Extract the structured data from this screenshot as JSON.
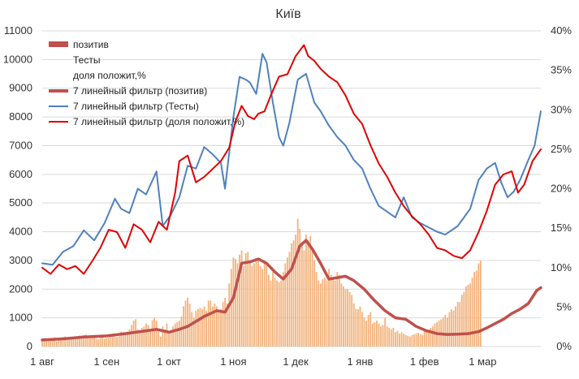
{
  "chart_data": {
    "type": "bar+line",
    "title": "Київ",
    "colors": {
      "bars": "#f2b27a",
      "pos_smooth": "#c0504d",
      "tests_smooth": "#4f81bd",
      "share_smooth": "#e00000",
      "legend_bar": "#c0504d",
      "grid": "#d9d9d9"
    },
    "y_left": {
      "min": 0,
      "max": 11000,
      "ticks": [
        "0",
        "1000",
        "2000",
        "3000",
        "4000",
        "5000",
        "6000",
        "7000",
        "8000",
        "9000",
        "10000",
        "11000"
      ]
    },
    "y_right": {
      "min": 0,
      "max": 40,
      "ticks": [
        "0%",
        "5%",
        "10%",
        "15%",
        "20%",
        "25%",
        "30%",
        "35%",
        "40%"
      ]
    },
    "x_ticks": [
      {
        "label": "1 авг",
        "day": 0
      },
      {
        "label": "1 сен",
        "day": 31
      },
      {
        "label": "1 окт",
        "day": 61
      },
      {
        "label": "1 ноя",
        "day": 92
      },
      {
        "label": "1 дек",
        "day": 122
      },
      {
        "label": "1 янв",
        "day": 153
      },
      {
        "label": "1 фев",
        "day": 184
      },
      {
        "label": "1 мар",
        "day": 212
      }
    ],
    "x_range": [
      0,
      230
    ],
    "legend": [
      {
        "label": "позитив",
        "kind": "bar"
      },
      {
        "label": "Тесты",
        "kind": "none"
      },
      {
        "label": "доля положит,%",
        "kind": "none"
      },
      {
        "label": "7 линейный фильтр (позитив)",
        "kind": "thick",
        "series": "pos_smooth"
      },
      {
        "label": "7 линейный фильтр (Тесты)",
        "kind": "line",
        "series": "tests_smooth"
      },
      {
        "label": "7 линейный фильтр (доля положит,%)",
        "kind": "line",
        "series": "share_smooth"
      }
    ],
    "series": {
      "pos_smooth": {
        "axis": "left",
        "points": [
          [
            0,
            230
          ],
          [
            10,
            270
          ],
          [
            20,
            330
          ],
          [
            31,
            370
          ],
          [
            40,
            450
          ],
          [
            50,
            550
          ],
          [
            55,
            600
          ],
          [
            61,
            500
          ],
          [
            66,
            600
          ],
          [
            70,
            700
          ],
          [
            78,
            1050
          ],
          [
            84,
            1250
          ],
          [
            88,
            1200
          ],
          [
            92,
            1700
          ],
          [
            96,
            2900
          ],
          [
            100,
            2950
          ],
          [
            104,
            3050
          ],
          [
            108,
            2900
          ],
          [
            112,
            2600
          ],
          [
            116,
            2350
          ],
          [
            120,
            2700
          ],
          [
            124,
            3500
          ],
          [
            127,
            3700
          ],
          [
            130,
            3400
          ],
          [
            134,
            2900
          ],
          [
            138,
            2350
          ],
          [
            142,
            2400
          ],
          [
            146,
            2450
          ],
          [
            150,
            2300
          ],
          [
            155,
            2000
          ],
          [
            160,
            1600
          ],
          [
            165,
            1250
          ],
          [
            170,
            1000
          ],
          [
            175,
            950
          ],
          [
            180,
            700
          ],
          [
            185,
            550
          ],
          [
            190,
            450
          ],
          [
            195,
            420
          ],
          [
            200,
            430
          ],
          [
            205,
            450
          ],
          [
            210,
            520
          ],
          [
            214,
            650
          ],
          [
            218,
            800
          ],
          [
            222,
            950
          ],
          [
            226,
            1150
          ],
          [
            230,
            1300
          ],
          [
            234,
            1500
          ],
          [
            238,
            1950
          ],
          [
            240,
            2050
          ]
        ]
      },
      "tests_smooth": {
        "axis": "left",
        "points": [
          [
            0,
            2900
          ],
          [
            5,
            2850
          ],
          [
            10,
            3300
          ],
          [
            15,
            3500
          ],
          [
            20,
            4050
          ],
          [
            25,
            3700
          ],
          [
            30,
            4300
          ],
          [
            35,
            5150
          ],
          [
            38,
            4800
          ],
          [
            42,
            4650
          ],
          [
            46,
            5500
          ],
          [
            50,
            5300
          ],
          [
            55,
            6100
          ],
          [
            58,
            4200
          ],
          [
            62,
            4600
          ],
          [
            66,
            5200
          ],
          [
            70,
            6300
          ],
          [
            74,
            6200
          ],
          [
            78,
            6950
          ],
          [
            82,
            6700
          ],
          [
            86,
            6400
          ],
          [
            88,
            5500
          ],
          [
            92,
            8000
          ],
          [
            95,
            9400
          ],
          [
            98,
            9300
          ],
          [
            100,
            9200
          ],
          [
            103,
            8800
          ],
          [
            106,
            10200
          ],
          [
            108,
            9900
          ],
          [
            111,
            8500
          ],
          [
            114,
            7300
          ],
          [
            116,
            7000
          ],
          [
            119,
            7800
          ],
          [
            123,
            9300
          ],
          [
            127,
            9500
          ],
          [
            131,
            8500
          ],
          [
            134,
            8200
          ],
          [
            138,
            7700
          ],
          [
            142,
            7300
          ],
          [
            146,
            7000
          ],
          [
            150,
            6500
          ],
          [
            154,
            6200
          ],
          [
            158,
            5500
          ],
          [
            162,
            4900
          ],
          [
            166,
            4700
          ],
          [
            170,
            4500
          ],
          [
            174,
            5200
          ],
          [
            178,
            4500
          ],
          [
            182,
            4300
          ],
          [
            186,
            4150
          ],
          [
            190,
            4000
          ],
          [
            194,
            3900
          ],
          [
            200,
            4200
          ],
          [
            206,
            4800
          ],
          [
            210,
            5800
          ],
          [
            214,
            6200
          ],
          [
            218,
            6400
          ],
          [
            221,
            5700
          ],
          [
            224,
            5200
          ],
          [
            227,
            5400
          ],
          [
            230,
            5800
          ],
          [
            234,
            6500
          ],
          [
            237,
            7000
          ],
          [
            240,
            8200
          ]
        ]
      },
      "share_smooth": {
        "axis": "right",
        "points": [
          [
            0,
            10
          ],
          [
            4,
            9.2
          ],
          [
            8,
            10.4
          ],
          [
            12,
            9.8
          ],
          [
            16,
            10.2
          ],
          [
            20,
            9.2
          ],
          [
            24,
            10.8
          ],
          [
            28,
            12.5
          ],
          [
            32,
            14.8
          ],
          [
            36,
            14.5
          ],
          [
            40,
            12.5
          ],
          [
            44,
            15.5
          ],
          [
            48,
            14.8
          ],
          [
            52,
            13.2
          ],
          [
            56,
            15.8
          ],
          [
            60,
            14.8
          ],
          [
            64,
            19.5
          ],
          [
            66,
            23.5
          ],
          [
            70,
            24.2
          ],
          [
            74,
            20.8
          ],
          [
            78,
            21.5
          ],
          [
            82,
            22.5
          ],
          [
            86,
            23.5
          ],
          [
            90,
            25.2
          ],
          [
            93,
            28.5
          ],
          [
            96,
            30.5
          ],
          [
            99,
            29.2
          ],
          [
            102,
            28.8
          ],
          [
            104,
            29.5
          ],
          [
            107,
            29.8
          ],
          [
            110,
            31.8
          ],
          [
            114,
            34.2
          ],
          [
            118,
            34.5
          ],
          [
            122,
            36.8
          ],
          [
            124,
            37.5
          ],
          [
            126,
            38.2
          ],
          [
            128,
            36.8
          ],
          [
            131,
            36.2
          ],
          [
            134,
            35.2
          ],
          [
            138,
            34.2
          ],
          [
            142,
            33.5
          ],
          [
            146,
            31.8
          ],
          [
            150,
            29.5
          ],
          [
            154,
            28.2
          ],
          [
            158,
            25.5
          ],
          [
            162,
            23.2
          ],
          [
            166,
            21.5
          ],
          [
            170,
            19.5
          ],
          [
            174,
            17.8
          ],
          [
            178,
            16.5
          ],
          [
            182,
            15.5
          ],
          [
            186,
            14.2
          ],
          [
            190,
            12.5
          ],
          [
            194,
            12.2
          ],
          [
            198,
            11.5
          ],
          [
            202,
            11.2
          ],
          [
            206,
            12.2
          ],
          [
            210,
            14.5
          ],
          [
            214,
            17.2
          ],
          [
            218,
            20.5
          ],
          [
            222,
            21.8
          ],
          [
            226,
            22.2
          ],
          [
            229,
            19.5
          ],
          [
            232,
            20.5
          ],
          [
            236,
            23.5
          ],
          [
            240,
            25
          ]
        ]
      }
    },
    "bars": {
      "axis": "left",
      "description": "daily positives",
      "values": [
        190,
        200,
        250,
        230,
        210,
        300,
        320,
        180,
        260,
        280,
        330,
        350,
        300,
        260,
        290,
        320,
        310,
        350,
        380,
        300,
        400,
        420,
        350,
        330,
        340,
        370,
        280,
        250,
        300,
        340,
        260,
        300,
        310,
        380,
        420,
        350,
        330,
        360,
        520,
        500,
        470,
        520,
        600,
        750,
        900,
        950,
        600,
        580,
        650,
        700,
        800,
        750,
        600,
        920,
        1000,
        900,
        520,
        350,
        700,
        600,
        800,
        480,
        550,
        700,
        800,
        850,
        900,
        1050,
        1400,
        1600,
        1700,
        1500,
        1200,
        1000,
        1250,
        1300,
        1350,
        1300,
        1400,
        1250,
        1600,
        1600,
        1400,
        1500,
        1400,
        1250,
        1300,
        1550,
        1700,
        1500,
        2200,
        2700,
        3100,
        3050,
        2900,
        3200,
        3350,
        2800,
        3250,
        3300,
        3000,
        2800,
        2900,
        3000,
        3050,
        2800,
        2700,
        3000,
        2900,
        2500,
        2300,
        2600,
        2400,
        2300,
        2250,
        2300,
        2600,
        2900,
        3100,
        3300,
        3600,
        3700,
        3900,
        4450,
        4100,
        3650,
        3350,
        3900,
        3700,
        3850,
        3400,
        3000,
        2600,
        2300,
        2200,
        2350,
        2400,
        2300,
        2700,
        2500,
        2400,
        2300,
        2600,
        2500,
        2200,
        2100,
        2000,
        2000,
        1900,
        1800,
        1500,
        1300,
        1300,
        1400,
        1200,
        1000,
        900,
        1100,
        1200,
        800,
        850,
        900,
        800,
        700,
        750,
        1000,
        700,
        650,
        600,
        650,
        500,
        550,
        450,
        500,
        450,
        400,
        380,
        350,
        400,
        420,
        450,
        480,
        430,
        400,
        550,
        550,
        600,
        650,
        700,
        800,
        850,
        900,
        950,
        1000,
        1100,
        1000,
        1200,
        1300,
        1250,
        1400,
        1550,
        1550,
        1800,
        1900,
        2100,
        2150,
        2200,
        2400,
        2600,
        2650,
        2900,
        3000
      ]
    }
  }
}
